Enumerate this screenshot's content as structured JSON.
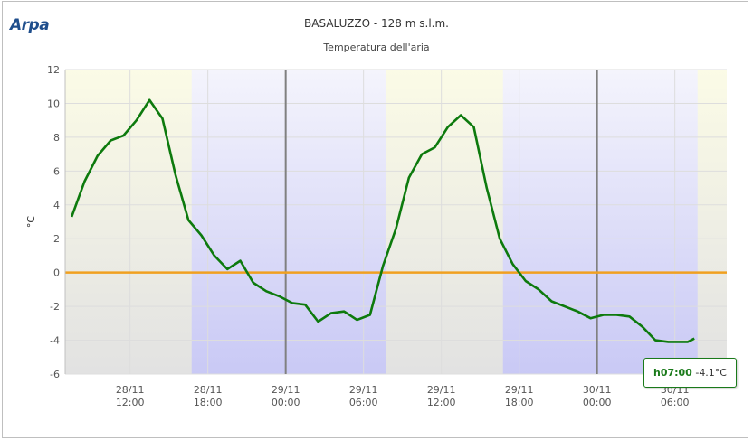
{
  "logo": {
    "text": "Arpa"
  },
  "header": {
    "title": "BASALUZZO - 128 m s.l.m.",
    "subtitle": "Temperatura dell'aria"
  },
  "tooltip": {
    "hour": "h07:00",
    "value": "-4.1°C"
  },
  "colors": {
    "line": "#0d7a0d",
    "zero_line": "#f0a020",
    "day_band": "#fbfbe6",
    "night_band": "#c9c9f5",
    "midnight_line": "#808080"
  },
  "chart_data": {
    "type": "line",
    "ylabel": "°C",
    "ylim": [
      -6,
      12
    ],
    "yticks": [
      12,
      10,
      8,
      6,
      4,
      2,
      0,
      -2,
      -4,
      -6
    ],
    "xlim": [
      "2024-11-28T07:00",
      "2024-11-30T10:00"
    ],
    "xticks": [
      {
        "date": "28/11",
        "time": "12:00",
        "t": "2024-11-28T12:00"
      },
      {
        "date": "28/11",
        "time": "18:00",
        "t": "2024-11-28T18:00"
      },
      {
        "date": "29/11",
        "time": "00:00",
        "t": "2024-11-29T00:00"
      },
      {
        "date": "29/11",
        "time": "06:00",
        "t": "2024-11-29T06:00"
      },
      {
        "date": "29/11",
        "time": "12:00",
        "t": "2024-11-29T12:00"
      },
      {
        "date": "29/11",
        "time": "18:00",
        "t": "2024-11-29T18:00"
      },
      {
        "date": "30/11",
        "time": "00:00",
        "t": "2024-11-30T00:00"
      },
      {
        "date": "30/11",
        "time": "06:00",
        "t": "2024-11-30T06:00"
      }
    ],
    "daylight_periods": [
      [
        "2024-11-28T07:00",
        "2024-11-28T16:45"
      ],
      [
        "2024-11-29T07:45",
        "2024-11-29T16:45"
      ],
      [
        "2024-11-30T07:45",
        "2024-11-30T10:00"
      ]
    ],
    "midnights": [
      "2024-11-29T00:00",
      "2024-11-30T00:00"
    ],
    "reference_line": 0,
    "series": [
      {
        "x": [
          "2024-11-28T07:30",
          "2024-11-28T08:30",
          "2024-11-28T09:30",
          "2024-11-28T10:30",
          "2024-11-28T11:30",
          "2024-11-28T12:30",
          "2024-11-28T13:30",
          "2024-11-28T14:30",
          "2024-11-28T15:30",
          "2024-11-28T16:30",
          "2024-11-28T17:30",
          "2024-11-28T18:30",
          "2024-11-28T19:30",
          "2024-11-28T20:30",
          "2024-11-28T21:30",
          "2024-11-28T22:30",
          "2024-11-28T23:30",
          "2024-11-29T00:30",
          "2024-11-29T01:30",
          "2024-11-29T02:30",
          "2024-11-29T03:30",
          "2024-11-29T04:30",
          "2024-11-29T05:30",
          "2024-11-29T06:30",
          "2024-11-29T07:30",
          "2024-11-29T08:30",
          "2024-11-29T09:30",
          "2024-11-29T10:30",
          "2024-11-29T11:30",
          "2024-11-29T12:30",
          "2024-11-29T13:30",
          "2024-11-29T14:30",
          "2024-11-29T15:30",
          "2024-11-29T16:30",
          "2024-11-29T17:30",
          "2024-11-29T18:30",
          "2024-11-29T19:30",
          "2024-11-29T20:30",
          "2024-11-29T21:30",
          "2024-11-29T22:30",
          "2024-11-29T23:30",
          "2024-11-30T00:30",
          "2024-11-30T01:30",
          "2024-11-30T02:30",
          "2024-11-30T03:30",
          "2024-11-30T04:30",
          "2024-11-30T05:30",
          "2024-11-30T06:30",
          "2024-11-30T07:00",
          "2024-11-30T07:30"
        ],
        "values": [
          3.3,
          5.4,
          6.9,
          7.8,
          8.1,
          9.0,
          10.2,
          9.1,
          5.8,
          3.1,
          2.2,
          1.0,
          0.2,
          0.7,
          -0.6,
          -1.1,
          -1.4,
          -1.8,
          -1.9,
          -2.9,
          -2.4,
          -2.3,
          -2.8,
          -2.5,
          0.4,
          2.6,
          5.6,
          7.0,
          7.4,
          8.6,
          9.3,
          8.6,
          5.0,
          2.0,
          0.5,
          -0.5,
          -1.0,
          -1.7,
          -2.0,
          -2.3,
          -2.7,
          -2.5,
          -2.5,
          -2.6,
          -3.2,
          -4.0,
          -4.1,
          -4.1,
          -4.1,
          -3.9
        ]
      }
    ]
  }
}
